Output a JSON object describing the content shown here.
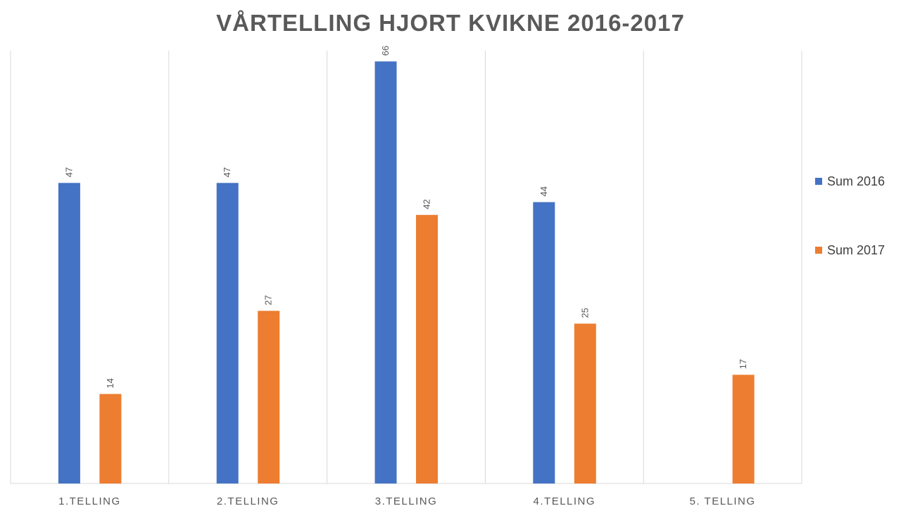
{
  "chart_data": {
    "type": "bar",
    "title": "VÅRTELLING HJORT KVIKNE 2016-2017",
    "categories": [
      "1.TELLING",
      "2.TELLING",
      "3.TELLING",
      "4.TELLING",
      "5. TELLING"
    ],
    "series": [
      {
        "name": "Sum 2016",
        "color": "#4472C4",
        "values": [
          47,
          47,
          66,
          44,
          null
        ]
      },
      {
        "name": "Sum 2017",
        "color": "#ED7D31",
        "values": [
          14,
          27,
          42,
          25,
          17
        ]
      }
    ],
    "ylim": [
      0,
      70
    ],
    "grid": "vertical category separators",
    "legend_position": "right",
    "data_labels": "rotated above bars"
  }
}
